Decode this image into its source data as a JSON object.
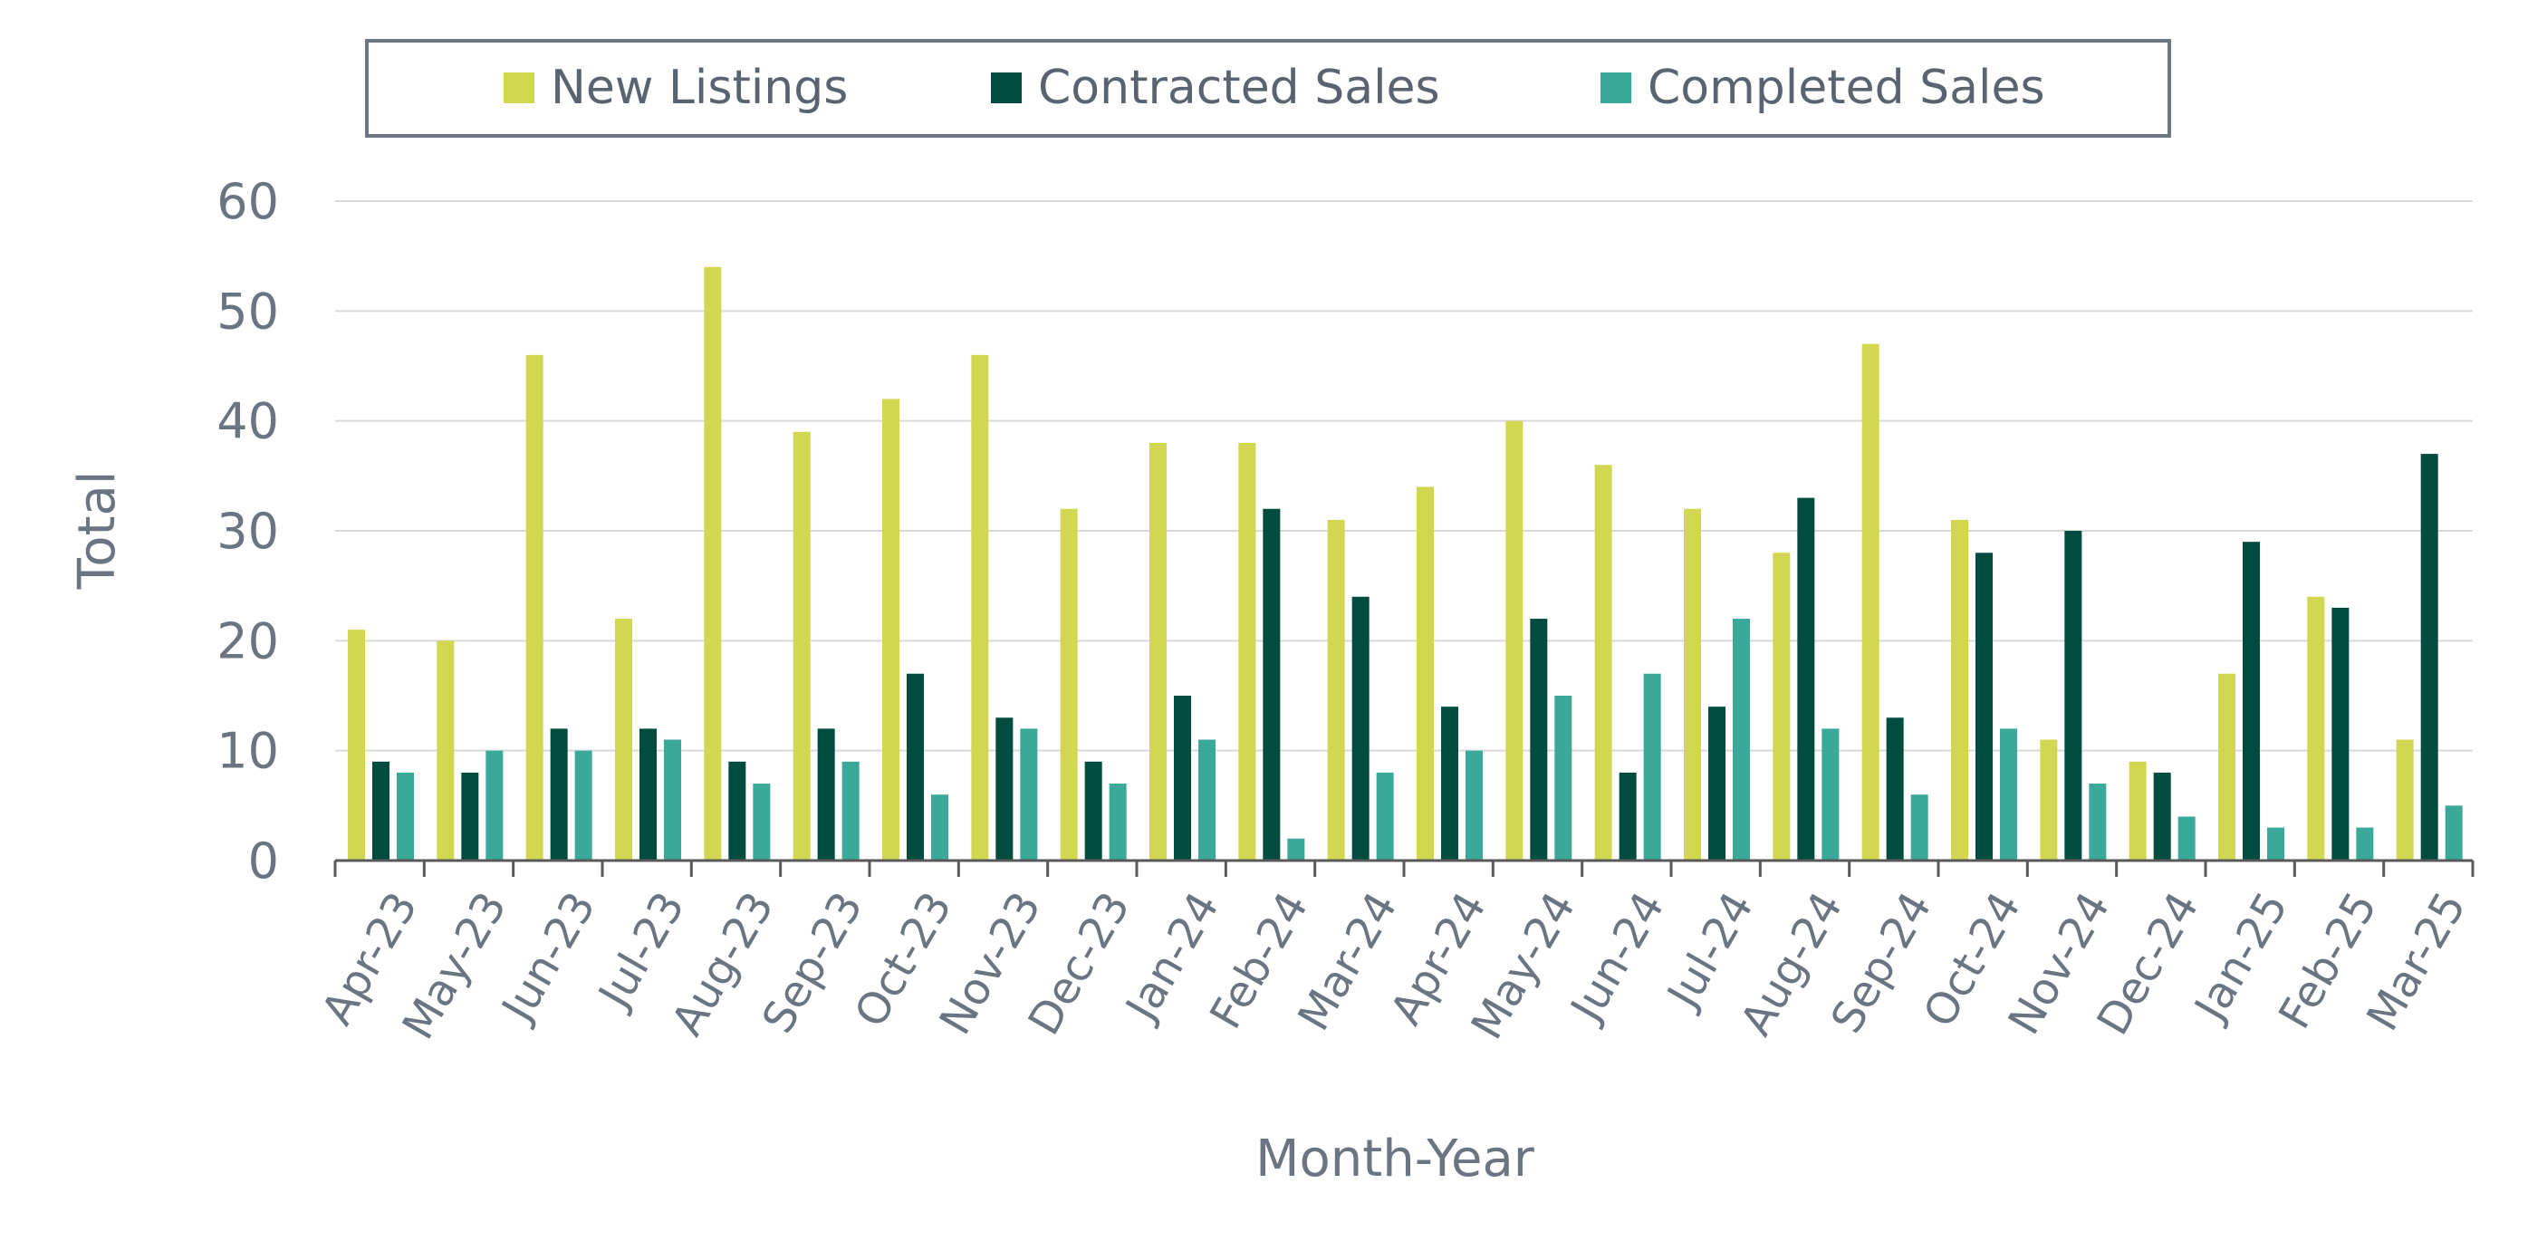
{
  "chart_data": {
    "type": "bar",
    "title": "",
    "xlabel": "Month-Year",
    "ylabel": "Total",
    "ylim": [
      0,
      60
    ],
    "yticks": [
      0,
      10,
      20,
      30,
      40,
      50,
      60
    ],
    "grid": true,
    "legend_position": "top",
    "categories": [
      "Apr-23",
      "May-23",
      "Jun-23",
      "Jul-23",
      "Aug-23",
      "Sep-23",
      "Oct-23",
      "Nov-23",
      "Dec-23",
      "Jan-24",
      "Feb-24",
      "Mar-24",
      "Apr-24",
      "May-24",
      "Jun-24",
      "Jul-24",
      "Aug-24",
      "Sep-24",
      "Oct-24",
      "Nov-24",
      "Dec-24",
      "Jan-25",
      "Feb-25",
      "Mar-25"
    ],
    "series": [
      {
        "name": "New Listings",
        "color": "#d2d752",
        "values": [
          21,
          20,
          46,
          22,
          54,
          39,
          42,
          46,
          32,
          38,
          38,
          31,
          34,
          40,
          36,
          32,
          28,
          47,
          31,
          11,
          9,
          17,
          24,
          11
        ]
      },
      {
        "name": "Contracted Sales",
        "color": "#004d40",
        "values": [
          9,
          8,
          12,
          12,
          9,
          12,
          17,
          13,
          9,
          15,
          32,
          24,
          14,
          22,
          8,
          14,
          33,
          13,
          28,
          30,
          8,
          29,
          23,
          37
        ]
      },
      {
        "name": "Completed Sales",
        "color": "#3aa99a",
        "values": [
          8,
          10,
          10,
          11,
          7,
          9,
          6,
          12,
          7,
          11,
          2,
          8,
          10,
          15,
          17,
          22,
          12,
          6,
          12,
          7,
          4,
          3,
          3,
          5
        ]
      }
    ]
  }
}
